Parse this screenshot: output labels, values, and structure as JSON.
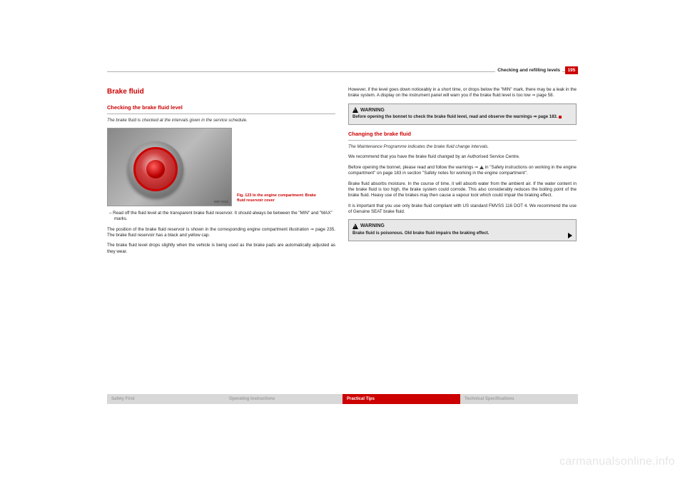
{
  "header": {
    "section_title": "Checking and refilling levels",
    "page_number": "195"
  },
  "left": {
    "h1": "Brake fluid",
    "h2": "Checking the brake fluid level",
    "intro": "The brake fluid is checked at the intervals given in the service schedule.",
    "figure": {
      "code": "B5P-0025",
      "caption": "Fig. 123  In the engine compartment: Brake fluid reservoir cover"
    },
    "bullet": "–  Read off the fluid level at the transparent brake fluid reservoir. It should always be between the \"MIN\" and \"MAX\" marks.",
    "p1": "The position of the brake fluid reservoir is shown in the corresponding engine compartment illustration ⇒ page 235. The brake fluid reservoir has a black and yellow cap.",
    "p2": "The brake fluid level drops slightly when the vehicle is being used as the brake pads are automatically adjusted as they wear."
  },
  "right": {
    "p0": "However, if the level goes down noticeably in a short time, or drops below the \"MIN\" mark, there may be a leak in the brake system. A display on the instrument panel will warn you if the brake fluid level is too low ⇒ page 58.",
    "warn1_label": "WARNING",
    "warn1_body": "Before opening the bonnet to check the brake fluid level, read and observe the warnings ⇒ page 183.",
    "h2": "Changing the brake fluid",
    "intro": "The Maintenance Programme indicates the brake fluid change intervals.",
    "p1": "We recommend that you have the brake fluid changed by an Authorised Service Centre.",
    "p2": "Before opening the bonnet, please read and follow the warnings ⇒  in \"Safety instructions on working in the engine compartment\" on page 183 in section \"Safety notes for working in the engine compartment\".",
    "p3": "Brake fluid absorbs moisture. In the course of time, it will absorb water from the ambient air. If the water content in the brake fluid is too high, the brake system could corrode. This also considerably reduces the boiling point of the brake fluid. Heavy use of the brakes may then cause a vapour lock which could impair the braking effect.",
    "p4": "It is important that you use only brake fluid compliant with US standard FMVSS 116 DOT 4. We recommend the use of Genuine SEAT brake fluid.",
    "warn2_label": "WARNING",
    "warn2_body": "Brake fluid is poisonous. Old brake fluid impairs the braking effect."
  },
  "footer": {
    "c1": "Safety First",
    "c2": "Operating Instructions",
    "c3": "Practical Tips",
    "c4": "Technical Specifications"
  },
  "watermark": "carmanualsonline.info"
}
